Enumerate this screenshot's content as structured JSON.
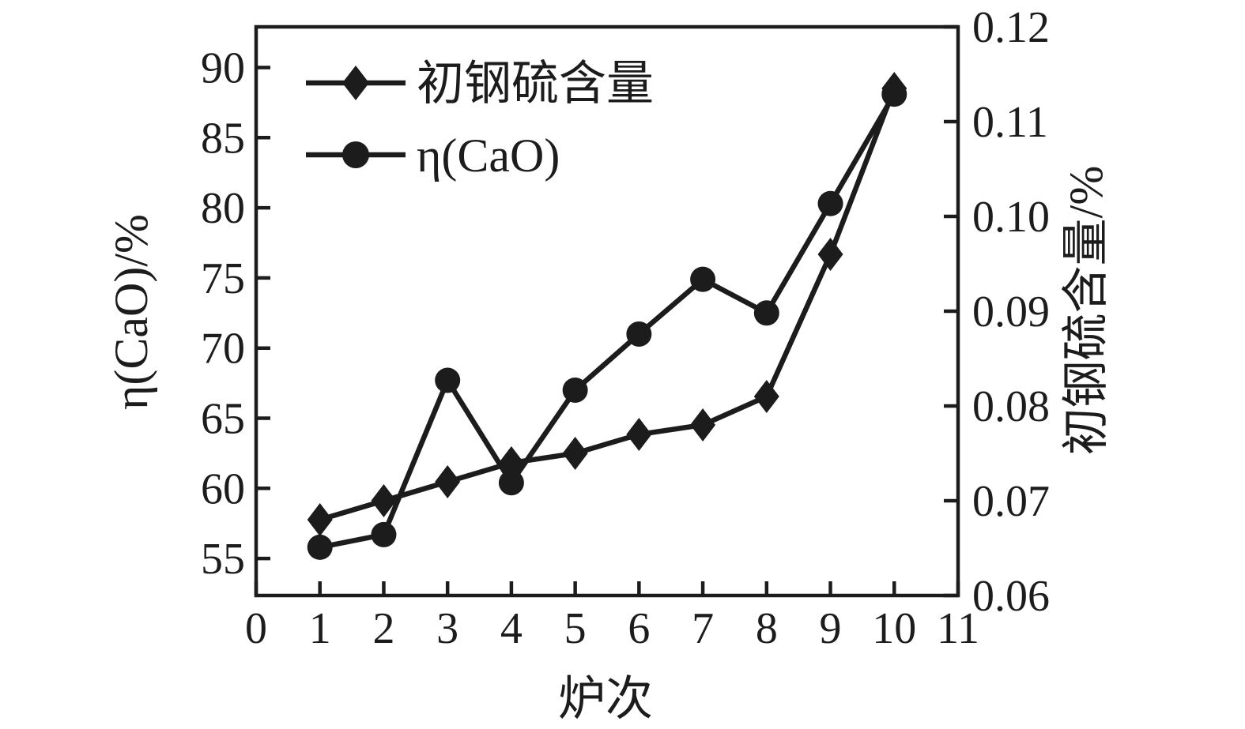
{
  "chart_data": {
    "type": "line",
    "xlabel": "炉次",
    "xlim": [
      0,
      11
    ],
    "x_ticks": [
      0,
      1,
      2,
      3,
      4,
      5,
      6,
      7,
      8,
      9,
      10,
      11
    ],
    "x": [
      1,
      2,
      3,
      4,
      5,
      6,
      7,
      8,
      9,
      10
    ],
    "left_axis": {
      "label": "η(CaO)/%",
      "ticks": [
        55,
        60,
        65,
        70,
        75,
        80,
        85,
        90
      ],
      "lim": [
        52.36,
        92.9
      ]
    },
    "right_axis": {
      "label": "初钢硫含量/%",
      "ticks": [
        0.06,
        0.07,
        0.08,
        0.09,
        0.1,
        0.11,
        0.12
      ],
      "lim": [
        0.06,
        0.12
      ],
      "tick_format_decimals": 2
    },
    "series": [
      {
        "name": "初钢硫含量",
        "axis": "right",
        "marker": "diamond",
        "color": "#1c1c1c",
        "values": [
          0.068,
          0.07,
          0.072,
          0.074,
          0.075,
          0.077,
          0.078,
          0.081,
          0.096,
          0.1135
        ]
      },
      {
        "name": "η(CaO)",
        "axis": "left",
        "marker": "circle",
        "color": "#1c1c1c",
        "values": [
          55.8,
          56.7,
          67.7,
          60.4,
          67.0,
          71.0,
          74.9,
          72.5,
          80.3,
          88.1
        ]
      }
    ],
    "legend": {
      "position": "top-left"
    },
    "grid": false,
    "background": "#ffffff",
    "ink_color": "#1c1c1c"
  }
}
